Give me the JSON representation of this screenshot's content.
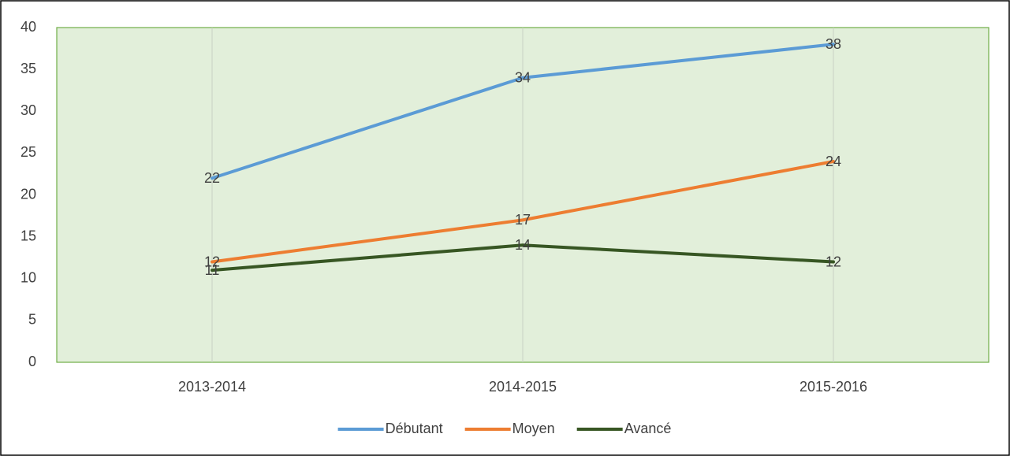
{
  "chart_data": {
    "type": "line",
    "categories": [
      "2013-2014",
      "2014-2015",
      "2015-2016"
    ],
    "series": [
      {
        "name": "Débutant",
        "color": "#5b9bd5",
        "values": [
          22,
          34,
          38
        ]
      },
      {
        "name": "Moyen",
        "color": "#ed7d31",
        "values": [
          12,
          17,
          24
        ]
      },
      {
        "name": "Avancé",
        "color": "#375623",
        "values": [
          11,
          14,
          12
        ]
      }
    ],
    "ylim": [
      0,
      40
    ],
    "yticks": [
      0,
      5,
      10,
      15,
      20,
      25,
      30,
      35,
      40
    ],
    "grid": "x",
    "plot_background": "#e2efda",
    "legend": "bottom"
  }
}
